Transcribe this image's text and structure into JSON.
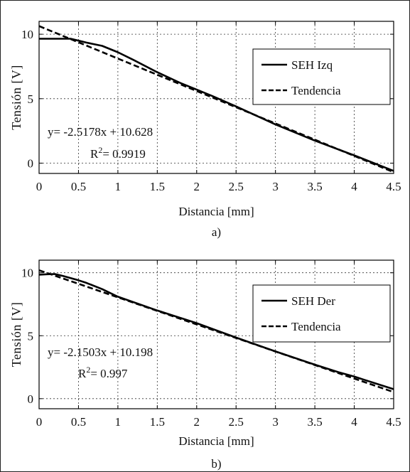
{
  "colors": {
    "series": "#000000",
    "trend": "#000000",
    "grid": "#333333"
  },
  "chart_data": [
    {
      "type": "line",
      "xlabel": "Distancia [mm]",
      "ylabel": "Tensión [V]",
      "caption": "a)",
      "xlim": [
        0,
        4.5
      ],
      "ylim": [
        -0.8,
        11
      ],
      "xticks": [
        0,
        0.5,
        1,
        1.5,
        2,
        2.5,
        3,
        3.5,
        4,
        4.5
      ],
      "xtick_labels": [
        "0",
        "0.5",
        "1",
        "1.5",
        "2",
        "2.5",
        "3",
        "3.5",
        "4",
        "4.5"
      ],
      "yticks": [
        0,
        5,
        10
      ],
      "ytick_labels": [
        "0",
        "5",
        "10"
      ],
      "grid": true,
      "legend_position": "top-right",
      "equation": "y= -2.5178x + 10.628",
      "r2_prefix": "R",
      "r2_sup": "2",
      "r2_value": "= 0.9919",
      "series": [
        {
          "name": "SEH Izq",
          "style": "solid",
          "x": [
            0,
            0.2,
            0.4,
            0.5,
            0.6,
            0.8,
            1.0,
            1.2,
            1.5,
            1.8,
            2.0,
            2.2,
            2.5,
            3.0,
            3.5,
            4.0,
            4.5
          ],
          "y": [
            9.65,
            9.65,
            9.65,
            9.5,
            9.35,
            9.1,
            8.6,
            8.0,
            7.05,
            6.2,
            5.7,
            5.2,
            4.4,
            3.0,
            1.75,
            0.6,
            -0.6
          ]
        },
        {
          "name": "Tendencia",
          "style": "dashed",
          "x": [
            0,
            4.5
          ],
          "y": [
            10.628,
            -0.702
          ]
        }
      ]
    },
    {
      "type": "line",
      "xlabel": "Distancia [mm]",
      "ylabel": "Tensión [V]",
      "caption": "b)",
      "xlim": [
        0,
        4.5
      ],
      "ylim": [
        -0.8,
        11
      ],
      "xticks": [
        0,
        0.5,
        1,
        1.5,
        2,
        2.5,
        3,
        3.5,
        4,
        4.5
      ],
      "xtick_labels": [
        "0",
        "0.5",
        "1",
        "1.5",
        "2",
        "2.5",
        "3",
        "3.5",
        "4",
        "4.5"
      ],
      "yticks": [
        0,
        5,
        10
      ],
      "ytick_labels": [
        "0",
        "5",
        "10"
      ],
      "grid": true,
      "legend_position": "top-right",
      "equation": "y= -2.1503x + 10.198",
      "r2_prefix": "R",
      "r2_sup": "2",
      "r2_value": "= 0.997",
      "series": [
        {
          "name": "SEH Der",
          "style": "solid",
          "x": [
            0,
            0.1,
            0.2,
            0.3,
            0.5,
            0.6,
            0.8,
            1.0,
            1.5,
            2.0,
            2.5,
            3.0,
            3.5,
            3.8,
            4.0,
            4.5
          ],
          "y": [
            9.85,
            9.88,
            9.9,
            9.75,
            9.4,
            9.2,
            8.7,
            8.1,
            7.0,
            6.0,
            4.85,
            3.75,
            2.7,
            2.1,
            1.75,
            0.75
          ]
        },
        {
          "name": "Tendencia",
          "style": "dashed",
          "x": [
            0,
            4.5
          ],
          "y": [
            10.198,
            0.522
          ]
        }
      ]
    }
  ]
}
